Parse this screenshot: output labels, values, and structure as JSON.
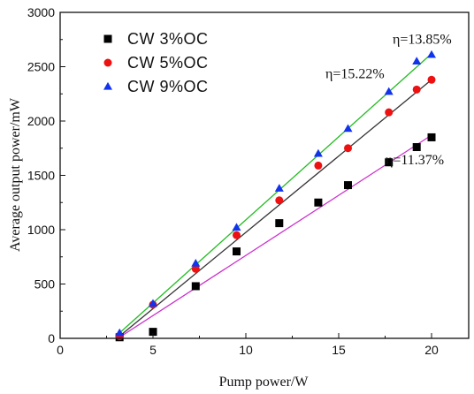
{
  "chart_data": {
    "type": "scatter",
    "xlabel": "Pump power/W",
    "ylabel": "Average output power/mW",
    "xlim": [
      0,
      22
    ],
    "ylim": [
      0,
      3000
    ],
    "xticks": [
      0,
      5,
      10,
      15,
      20
    ],
    "yticks": [
      0,
      500,
      1000,
      1500,
      2000,
      2500,
      3000
    ],
    "grid": false,
    "legend_position": "top-left",
    "series": [
      {
        "name": "CW 3%OC",
        "marker": "square",
        "color": "#000000",
        "line_color": "#cc33cc",
        "x": [
          3.2,
          5.0,
          7.3,
          9.5,
          11.8,
          13.9,
          15.5,
          17.7,
          19.2,
          20.0
        ],
        "y": [
          10,
          60,
          480,
          800,
          1060,
          1250,
          1410,
          1620,
          1760,
          1850
        ],
        "fit_line": [
          [
            3.2,
            10
          ],
          [
            20.0,
            1870
          ]
        ],
        "annotation": "η=11.37%"
      },
      {
        "name": "CW 5%OC",
        "marker": "circle",
        "color": "#ee1111",
        "line_color": "#333333",
        "x": [
          3.2,
          5.0,
          7.3,
          9.5,
          11.8,
          13.9,
          15.5,
          17.7,
          19.2,
          20.0
        ],
        "y": [
          20,
          310,
          640,
          950,
          1270,
          1590,
          1750,
          2080,
          2290,
          2380
        ],
        "fit_line": [
          [
            3.2,
            20
          ],
          [
            20.0,
            2380
          ]
        ],
        "annotation": "η=13.85%"
      },
      {
        "name": "CW 9%OC",
        "marker": "triangle",
        "color": "#1133ee",
        "line_color": "#22bb22",
        "x": [
          3.2,
          5.0,
          7.3,
          9.5,
          11.8,
          13.9,
          15.5,
          17.7,
          19.2,
          20.0
        ],
        "y": [
          50,
          320,
          690,
          1020,
          1380,
          1700,
          1930,
          2270,
          2550,
          2610
        ],
        "fit_line": [
          [
            3.2,
            50
          ],
          [
            20.0,
            2620
          ]
        ],
        "annotation": "η=15.22%"
      }
    ]
  }
}
